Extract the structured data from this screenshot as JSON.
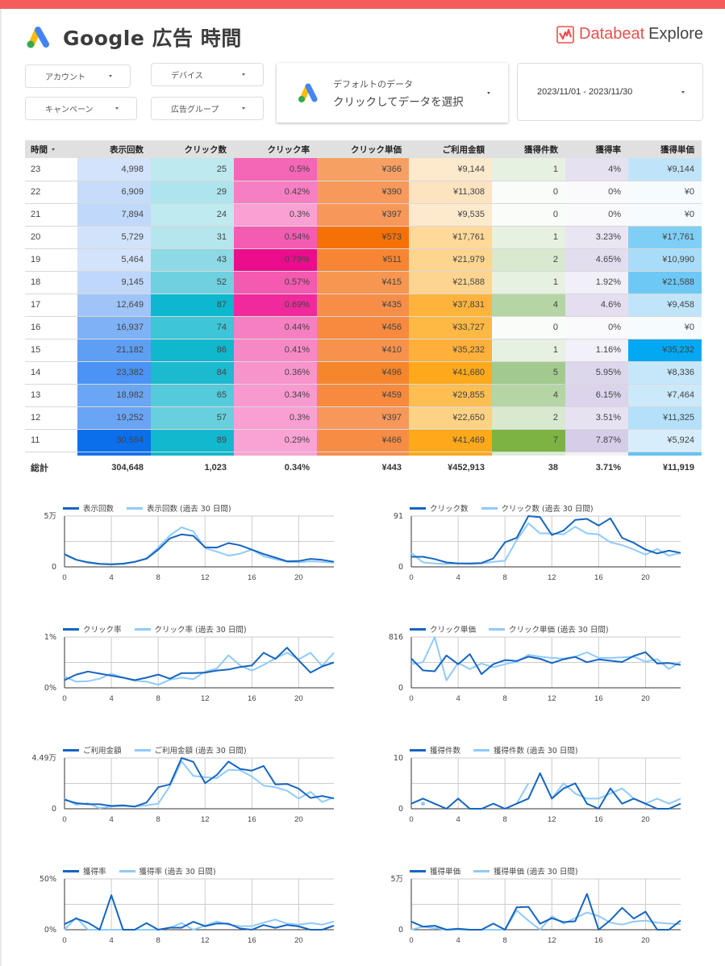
{
  "header": {
    "title": "Google 広告 時間",
    "brand_name": "Databeat",
    "brand_suffix": "Explore",
    "accent_color": "#f55d5d"
  },
  "filters": {
    "account": "アカウント",
    "device": "デバイス",
    "campaign": "キャンペーン",
    "ad_group": "広告グループ"
  },
  "data_source": {
    "line1": "デフォルトのデータ",
    "line2": "クリックしてデータを選択"
  },
  "date_range": "2023/11/01 - 2023/11/30",
  "table": {
    "columns": [
      "時間",
      "表示回数",
      "クリック数",
      "クリック率",
      "クリック単価",
      "ご利用金額",
      "獲得件数",
      "獲得率",
      "獲得単価"
    ],
    "rows": [
      [
        "23",
        "4,998",
        "25",
        "0.5%",
        "¥366",
        "¥9,144",
        "1",
        "4%",
        "¥9,144"
      ],
      [
        "22",
        "6,909",
        "29",
        "0.42%",
        "¥390",
        "¥11,308",
        "0",
        "0%",
        "¥0"
      ],
      [
        "21",
        "7,894",
        "24",
        "0.3%",
        "¥397",
        "¥9,535",
        "0",
        "0%",
        "¥0"
      ],
      [
        "20",
        "5,729",
        "31",
        "0.54%",
        "¥573",
        "¥17,761",
        "1",
        "3.23%",
        "¥17,761"
      ],
      [
        "19",
        "5,464",
        "43",
        "0.79%",
        "¥511",
        "¥21,979",
        "2",
        "4.65%",
        "¥10,990"
      ],
      [
        "18",
        "9,145",
        "52",
        "0.57%",
        "¥415",
        "¥21,588",
        "1",
        "1.92%",
        "¥21,588"
      ],
      [
        "17",
        "12,649",
        "87",
        "0.69%",
        "¥435",
        "¥37,831",
        "4",
        "4.6%",
        "¥9,458"
      ],
      [
        "16",
        "16,937",
        "74",
        "0.44%",
        "¥456",
        "¥33,727",
        "0",
        "0%",
        "¥0"
      ],
      [
        "15",
        "21,182",
        "86",
        "0.41%",
        "¥410",
        "¥35,232",
        "1",
        "1.16%",
        "¥35,232"
      ],
      [
        "14",
        "23,382",
        "84",
        "0.36%",
        "¥496",
        "¥41,680",
        "5",
        "5.95%",
        "¥8,336"
      ],
      [
        "13",
        "18,982",
        "65",
        "0.34%",
        "¥459",
        "¥29,855",
        "4",
        "6.15%",
        "¥7,464"
      ],
      [
        "12",
        "19,252",
        "57",
        "0.3%",
        "¥397",
        "¥22,650",
        "2",
        "3.51%",
        "¥11,325"
      ],
      [
        "11",
        "30,594",
        "89",
        "0.29%",
        "¥466",
        "¥41,469",
        "7",
        "7.87%",
        "¥5,924"
      ]
    ],
    "cell_colors": [
      [
        "#d3e3fb",
        "#bde9ef",
        "#f466b6",
        "#f7a064",
        "#fde9cc",
        "#e7f1e1",
        "#e6e1f1",
        "#bfe4fa"
      ],
      [
        "#c6dcfb",
        "#ade4ed",
        "#f57fc2",
        "#f7995a",
        "#fde3c0",
        "#fafcf9",
        "#fafafd",
        "#f6fbfe"
      ],
      [
        "#c0d8fa",
        "#bfeaf0",
        "#f8a1d2",
        "#f7975a",
        "#fdeacd",
        "#fafcf9",
        "#fafafd",
        "#f6fbfe"
      ],
      [
        "#d1e2fb",
        "#b5e6ee",
        "#f45cb2",
        "#f57106",
        "#fed999",
        "#e7f1e1",
        "#e9e5f3",
        "#7fcef6"
      ],
      [
        "#d3e3fb",
        "#8dd9e6",
        "#ec0d8d",
        "#f78533",
        "#fed58e",
        "#d8e9cf",
        "#e3ddf0",
        "#a9dcf8"
      ],
      [
        "#bfd7fa",
        "#6fd0e0",
        "#f45aaf",
        "#f79650",
        "#fed590",
        "#e7f1e1",
        "#f1eff8",
        "#6dc8f5"
      ],
      [
        "#9fc4f8",
        "#0db7ce",
        "#f02a9c",
        "#f78e47",
        "#feb43c",
        "#b5d5a4",
        "#e4def0",
        "#c0e5fa"
      ],
      [
        "#7eb1f6",
        "#3ec5d8",
        "#f67fc2",
        "#f78a3f",
        "#feb844",
        "#fafcf9",
        "#fafafd",
        "#f6fbfe"
      ],
      [
        "#5e9ff4",
        "#10b8ce",
        "#f788c6",
        "#f7924c",
        "#feb03a",
        "#e7f1e1",
        "#f2f0f8",
        "#03a8f2"
      ],
      [
        "#4b93f4",
        "#1bbacf",
        "#f894cc",
        "#f5862c",
        "#fea91b",
        "#a3ca8e",
        "#ddd7ec",
        "#c6e7fa"
      ],
      [
        "#6ba6f5",
        "#54cadb",
        "#f899cf",
        "#f78a3e",
        "#febe52",
        "#b5d5a4",
        "#dbd4eb",
        "#cce9fa"
      ],
      [
        "#6aa5f5",
        "#68cfde",
        "#f9a0d2",
        "#f7975a",
        "#fed284",
        "#d8e9cf",
        "#e7e2f2",
        "#b5e0f9"
      ],
      [
        "#0b6eeb",
        "#12b8ce",
        "#f9a3d4",
        "#f78d44",
        "#fea81a",
        "#7cb342",
        "#d6cde8",
        "#d7edfb"
      ]
    ],
    "spacer_colors": [
      "#1173ec",
      "#12b8ce",
      "#f9a3d4",
      "#f78d44",
      "#fea81a",
      "#dcebd3",
      "#f2f0f8",
      "#63c4f4"
    ],
    "totals": [
      "総計",
      "304,648",
      "1,023",
      "0.34%",
      "¥443",
      "¥452,913",
      "38",
      "3.71%",
      "¥11,919"
    ]
  },
  "chart_data": [
    {
      "type": "line",
      "title": "表示回数",
      "x": [
        0,
        1,
        2,
        3,
        4,
        5,
        6,
        7,
        8,
        9,
        10,
        11,
        12,
        13,
        14,
        15,
        16,
        17,
        18,
        19,
        20,
        21,
        22,
        23
      ],
      "xticks": [
        "0",
        "4",
        "8",
        "12",
        "16",
        "20"
      ],
      "ylim": [
        0,
        50000
      ],
      "ytick_labels": [
        "0",
        "5万"
      ],
      "series": [
        {
          "name": "表示回数",
          "values": [
            12500,
            7000,
            4500,
            3000,
            2500,
            3200,
            5000,
            8000,
            17000,
            28000,
            32000,
            30594,
            19252,
            18982,
            23382,
            21182,
            16937,
            12649,
            9145,
            5464,
            5729,
            7894,
            6909,
            4998
          ]
        },
        {
          "name": "表示回数 (過去 30 日間)",
          "values": [
            12000,
            7000,
            4000,
            2800,
            2200,
            2800,
            4800,
            8500,
            19000,
            31000,
            39000,
            35000,
            18500,
            15000,
            11000,
            13000,
            17000,
            10500,
            7500,
            5000,
            4500,
            5500,
            5000,
            4000
          ]
        }
      ]
    },
    {
      "type": "line",
      "title": "クリック数",
      "x": [
        0,
        1,
        2,
        3,
        4,
        5,
        6,
        7,
        8,
        9,
        10,
        11,
        12,
        13,
        14,
        15,
        16,
        17,
        18,
        19,
        20,
        21,
        22,
        23
      ],
      "xticks": [
        "0",
        "4",
        "8",
        "12",
        "16",
        "20"
      ],
      "ylim": [
        0,
        91
      ],
      "ytick_labels": [
        "0",
        "91"
      ],
      "series": [
        {
          "name": "クリック数",
          "values": [
            18,
            18,
            14,
            8,
            6,
            6,
            7,
            15,
            44,
            52,
            91,
            89,
            57,
            65,
            84,
            86,
            74,
            87,
            52,
            43,
            31,
            24,
            29,
            25
          ]
        },
        {
          "name": "クリック数 (過去 30 日間)",
          "values": [
            25,
            8,
            6,
            5,
            6,
            5,
            6,
            9,
            11,
            48,
            78,
            60,
            60,
            58,
            72,
            60,
            58,
            44,
            39,
            31,
            22,
            32,
            20,
            25
          ]
        }
      ]
    },
    {
      "type": "line",
      "title": "クリック率",
      "x": [
        0,
        1,
        2,
        3,
        4,
        5,
        6,
        7,
        8,
        9,
        10,
        11,
        12,
        13,
        14,
        15,
        16,
        17,
        18,
        19,
        20,
        21,
        22,
        23
      ],
      "xticks": [
        "0",
        "4",
        "8",
        "12",
        "16",
        "20"
      ],
      "ylim": [
        0,
        1
      ],
      "ytick_labels": [
        "0%",
        "1%"
      ],
      "series": [
        {
          "name": "クリック率",
          "values": [
            0.15,
            0.26,
            0.32,
            0.28,
            0.24,
            0.2,
            0.15,
            0.2,
            0.26,
            0.18,
            0.29,
            0.29,
            0.3,
            0.34,
            0.36,
            0.41,
            0.44,
            0.69,
            0.57,
            0.79,
            0.54,
            0.3,
            0.42,
            0.5
          ]
        },
        {
          "name": "クリック率 (過去 30 日間)",
          "values": [
            0.22,
            0.12,
            0.13,
            0.18,
            0.28,
            0.2,
            0.14,
            0.12,
            0.06,
            0.16,
            0.2,
            0.17,
            0.32,
            0.38,
            0.64,
            0.44,
            0.34,
            0.45,
            0.58,
            0.69,
            0.56,
            0.69,
            0.43,
            0.69
          ]
        }
      ]
    },
    {
      "type": "line",
      "title": "クリック単価",
      "x": [
        0,
        1,
        2,
        3,
        4,
        5,
        6,
        7,
        8,
        9,
        10,
        11,
        12,
        13,
        14,
        15,
        16,
        17,
        18,
        19,
        20,
        21,
        22,
        23
      ],
      "xticks": [
        "0",
        "4",
        "8",
        "12",
        "16",
        "20"
      ],
      "ylim": [
        0,
        816
      ],
      "ytick_labels": [
        "0",
        "816"
      ],
      "series": [
        {
          "name": "クリック単価",
          "values": [
            470,
            280,
            265,
            520,
            380,
            540,
            220,
            380,
            445,
            430,
            500,
            466,
            397,
            459,
            496,
            410,
            456,
            435,
            415,
            511,
            573,
            390,
            397,
            366
          ]
        },
        {
          "name": "クリック単価 (過去 30 日間)",
          "values": [
            380,
            410,
            816,
            120,
            400,
            300,
            390,
            330,
            380,
            420,
            530,
            500,
            480,
            470,
            500,
            570,
            480,
            480,
            490,
            500,
            420,
            460,
            300,
            420
          ]
        }
      ]
    },
    {
      "type": "line",
      "title": "ご利用金額",
      "x": [
        0,
        1,
        2,
        3,
        4,
        5,
        6,
        7,
        8,
        9,
        10,
        11,
        12,
        13,
        14,
        15,
        16,
        17,
        18,
        19,
        20,
        21,
        22,
        23
      ],
      "xticks": [
        "0",
        "4",
        "8",
        "12",
        "16",
        "20"
      ],
      "ylim": [
        0,
        44900
      ],
      "ytick_labels": [
        "0",
        "4.49万"
      ],
      "series": [
        {
          "name": "ご利用金額",
          "values": [
            8000,
            5000,
            4000,
            4000,
            2500,
            3000,
            2000,
            5500,
            19000,
            21500,
            44900,
            41469,
            22650,
            29855,
            41680,
            35232,
            33727,
            37831,
            21588,
            21979,
            17761,
            9535,
            11308,
            9144
          ]
        },
        {
          "name": "ご利用金額 (過去 30 日間)",
          "values": [
            9000,
            3500,
            5000,
            500,
            2000,
            2500,
            2000,
            3000,
            4500,
            20000,
            42000,
            29000,
            28000,
            27000,
            34500,
            34000,
            28500,
            20500,
            19000,
            16000,
            9000,
            15000,
            6000,
            10000
          ]
        }
      ]
    },
    {
      "type": "line",
      "title": "獲得件数",
      "x": [
        0,
        1,
        2,
        3,
        4,
        5,
        6,
        7,
        8,
        9,
        10,
        11,
        12,
        13,
        14,
        15,
        16,
        17,
        18,
        19,
        20,
        21,
        22,
        23
      ],
      "xticks": [
        "0",
        "4",
        "8",
        "12",
        "16",
        "20"
      ],
      "ylim": [
        0,
        10
      ],
      "ytick_labels": [
        "0",
        "10"
      ],
      "series": [
        {
          "name": "獲得件数",
          "values": [
            1,
            2,
            1,
            0,
            2,
            0,
            0,
            1,
            0,
            1,
            2,
            7,
            2,
            4,
            5,
            1,
            0,
            4,
            1,
            2,
            1,
            0,
            0,
            1
          ]
        },
        {
          "name": "獲得件数 (過去 30 日間)",
          "values": [
            null,
            1,
            null,
            null,
            null,
            null,
            null,
            null,
            null,
            1,
            5,
            null,
            2,
            5,
            3,
            2,
            2,
            3,
            4,
            2,
            1,
            2,
            1,
            2
          ]
        }
      ]
    },
    {
      "type": "line",
      "title": "獲得率",
      "x": [
        0,
        1,
        2,
        3,
        4,
        5,
        6,
        7,
        8,
        9,
        10,
        11,
        12,
        13,
        14,
        15,
        16,
        17,
        18,
        19,
        20,
        21,
        22,
        23
      ],
      "xticks": [
        "0",
        "4",
        "8",
        "12",
        "16",
        "20"
      ],
      "ylim": [
        0,
        50
      ],
      "ytick_labels": [
        "0%",
        "50%"
      ],
      "series": [
        {
          "name": "獲得率",
          "values": [
            5.5,
            11,
            7,
            0,
            34,
            0,
            0,
            6.5,
            0,
            2,
            2,
            7.87,
            3.51,
            6.15,
            5.95,
            1.16,
            0,
            4.6,
            1.92,
            4.65,
            3.23,
            0,
            0,
            4
          ]
        },
        {
          "name": "獲得率 (過去 30 日間)",
          "values": [
            0,
            12,
            0,
            0,
            0,
            0,
            0,
            0,
            0,
            2,
            6.5,
            0,
            4,
            8,
            5,
            3.5,
            3.5,
            7,
            10,
            6,
            5,
            6.5,
            5,
            8
          ]
        }
      ]
    },
    {
      "type": "line",
      "title": "獲得単価",
      "x": [
        0,
        1,
        2,
        3,
        4,
        5,
        6,
        7,
        8,
        9,
        10,
        11,
        12,
        13,
        14,
        15,
        16,
        17,
        18,
        19,
        20,
        21,
        22,
        23
      ],
      "xticks": [
        "0",
        "4",
        "8",
        "12",
        "16",
        "20"
      ],
      "ylim": [
        0,
        50000
      ],
      "ytick_labels": [
        "0",
        "5万"
      ],
      "series": [
        {
          "name": "獲得単価",
          "values": [
            8000,
            3000,
            4000,
            0,
            1000,
            0,
            0,
            6000,
            0,
            22000,
            22500,
            5924,
            11325,
            7464,
            8336,
            35232,
            0,
            9458,
            21588,
            10990,
            17761,
            0,
            0,
            9144
          ]
        },
        {
          "name": "獲得単価 (過去 30 日間)",
          "values": [
            0,
            3000,
            1500,
            0,
            0,
            0,
            0,
            0,
            0,
            19000,
            9000,
            0,
            13500,
            6000,
            11500,
            17000,
            13500,
            7000,
            5000,
            8000,
            9000,
            7000,
            6000,
            5500
          ]
        }
      ]
    }
  ],
  "chart_colors": {
    "current": "#1565c0",
    "previous": "#90caf9",
    "grid": "#cccccc"
  }
}
